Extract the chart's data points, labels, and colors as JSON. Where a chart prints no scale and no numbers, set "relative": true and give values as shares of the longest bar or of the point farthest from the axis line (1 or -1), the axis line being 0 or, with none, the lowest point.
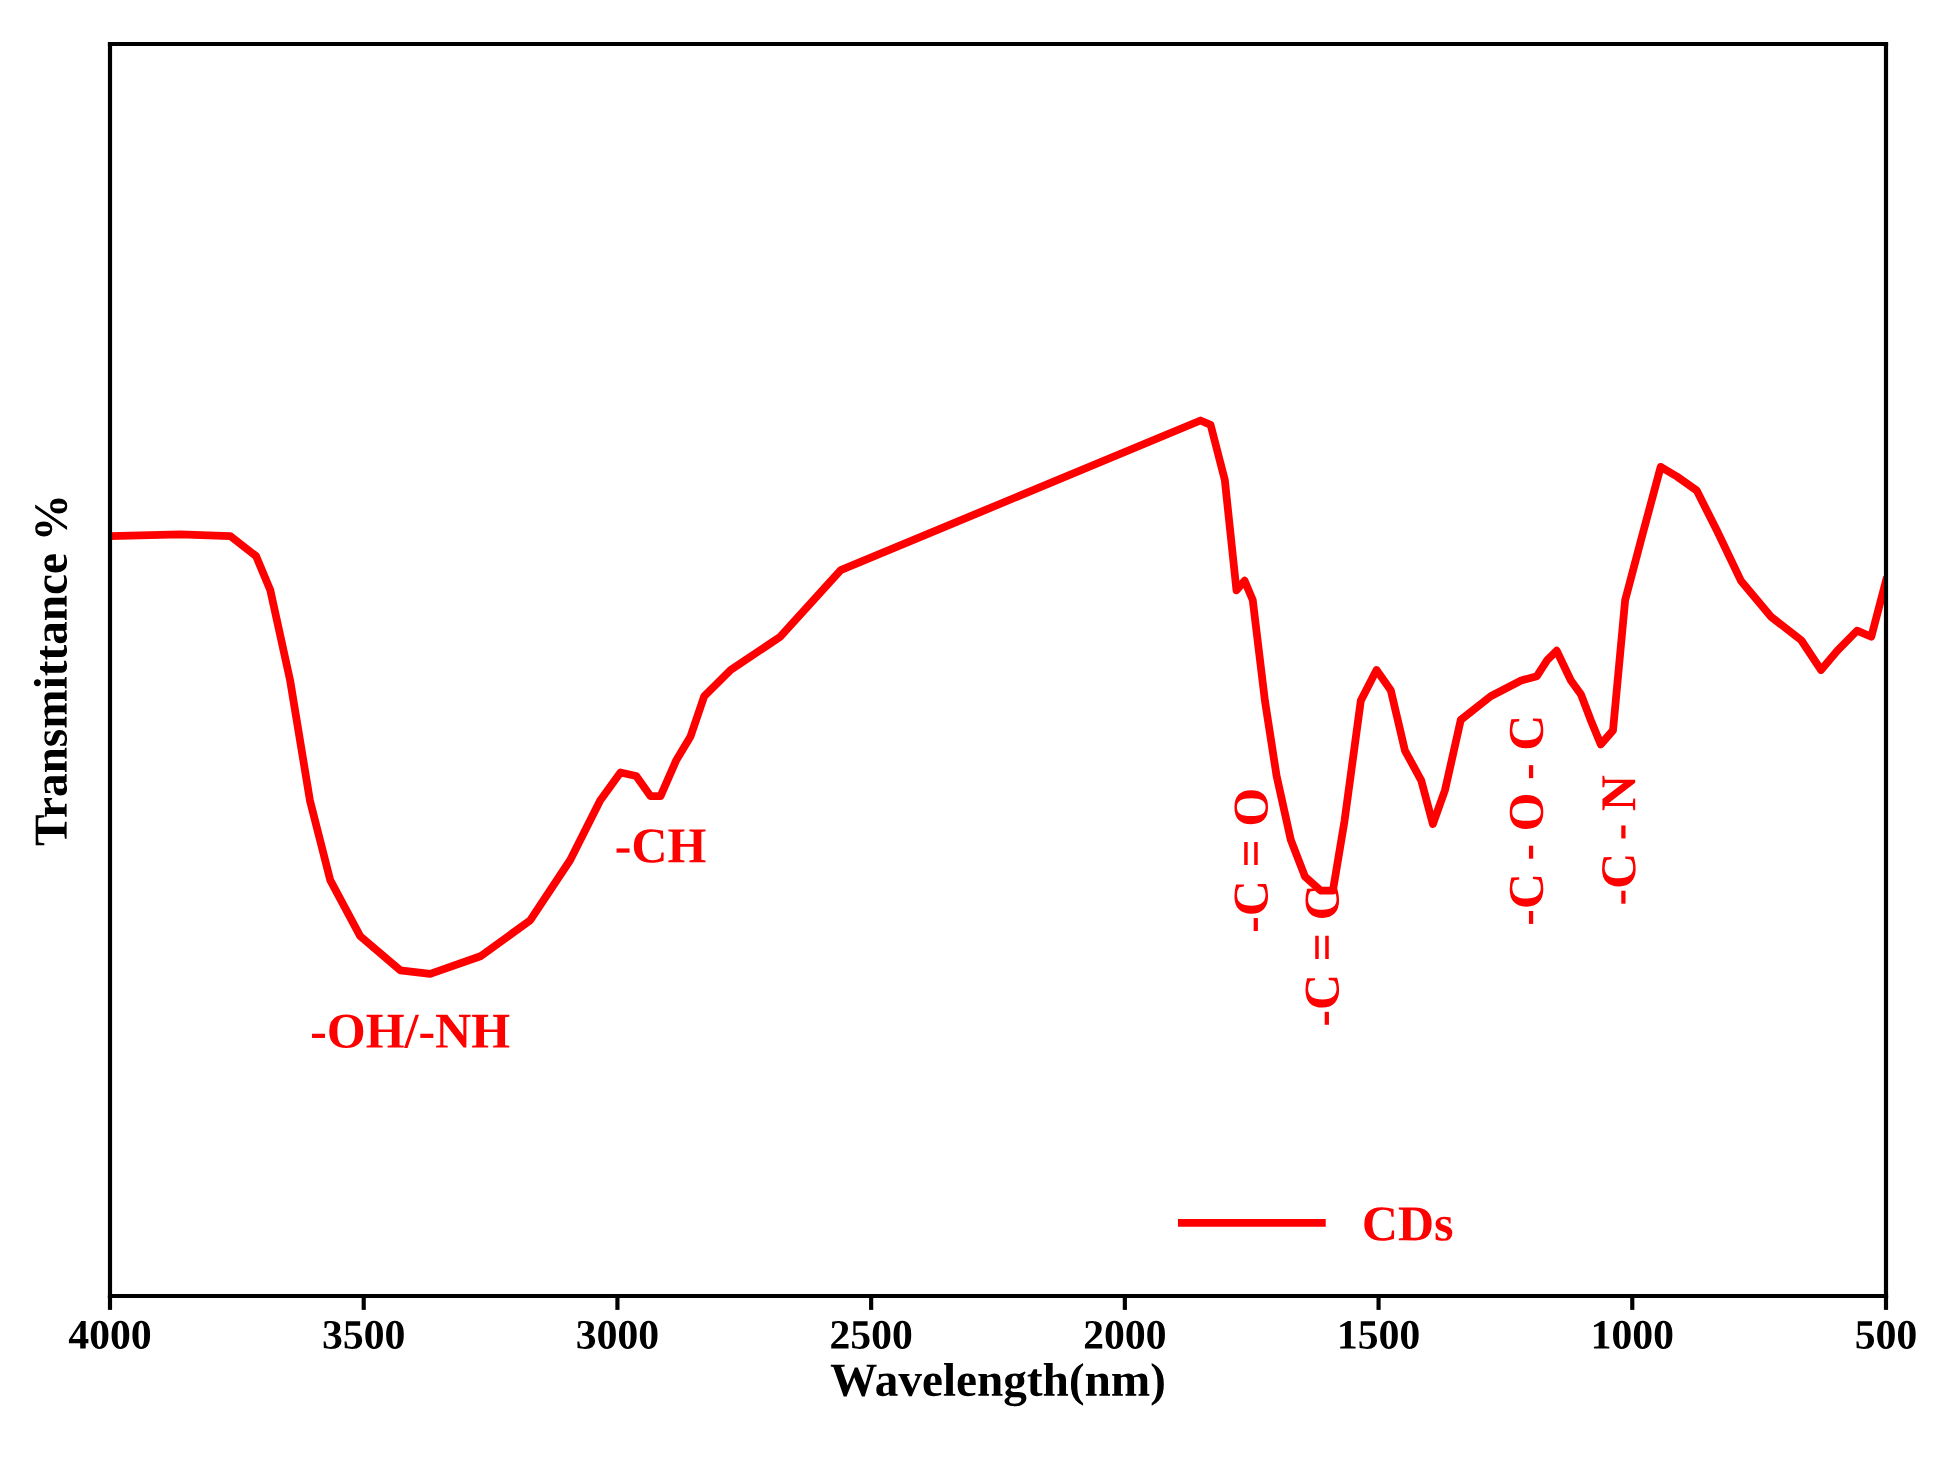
{
  "chart_data": {
    "type": "line",
    "relative": true,
    "xlabel": "Wavelength(nm)",
    "ylabel": "Transmittance %",
    "xlim": [
      4000,
      500
    ],
    "xticks": [
      4000,
      3500,
      3000,
      2500,
      2000,
      1500,
      1000,
      500
    ],
    "tick_labels": "x",
    "grid": false,
    "legend": "bottom",
    "marker": "none",
    "line_style": "solid",
    "series": [
      {
        "name": "CDs",
        "color": "#ff0000",
        "x": [
          4000,
          3862,
          3763,
          3712,
          3684,
          3645,
          3606,
          3566,
          3507,
          3428,
          3369,
          3270,
          3172,
          3093,
          3034,
          2994,
          2963,
          2935,
          2915,
          2884,
          2856,
          2829,
          2777,
          2679,
          2560,
          1851,
          1831,
          1803,
          1780,
          1764,
          1748,
          1724,
          1701,
          1673,
          1645,
          1614,
          1590,
          1567,
          1535,
          1504,
          1476,
          1448,
          1416,
          1393,
          1369,
          1338,
          1279,
          1219,
          1188,
          1168,
          1149,
          1121,
          1101,
          1082,
          1062,
          1038,
          1014,
          983,
          944,
          912,
          873,
          833,
          786,
          727,
          667,
          628,
          596,
          557,
          529,
          500
        ],
        "values": [
          0.868,
          0.87,
          0.868,
          0.845,
          0.806,
          0.703,
          0.566,
          0.475,
          0.411,
          0.372,
          0.368,
          0.388,
          0.429,
          0.498,
          0.566,
          0.598,
          0.594,
          0.571,
          0.571,
          0.612,
          0.639,
          0.685,
          0.715,
          0.753,
          0.829,
          1.0,
          0.995,
          0.932,
          0.806,
          0.817,
          0.795,
          0.68,
          0.594,
          0.521,
          0.479,
          0.463,
          0.463,
          0.543,
          0.68,
          0.715,
          0.692,
          0.623,
          0.589,
          0.539,
          0.578,
          0.658,
          0.685,
          0.703,
          0.708,
          0.726,
          0.737,
          0.703,
          0.687,
          0.658,
          0.63,
          0.646,
          0.795,
          0.863,
          0.947,
          0.936,
          0.92,
          0.874,
          0.817,
          0.776,
          0.749,
          0.715,
          0.737,
          0.76,
          0.753,
          0.817
        ]
      }
    ],
    "annotations": [
      "-OH/-NH",
      "-CH",
      "-C = O",
      "-C = C",
      "-C - O - C",
      "-C - N"
    ]
  }
}
